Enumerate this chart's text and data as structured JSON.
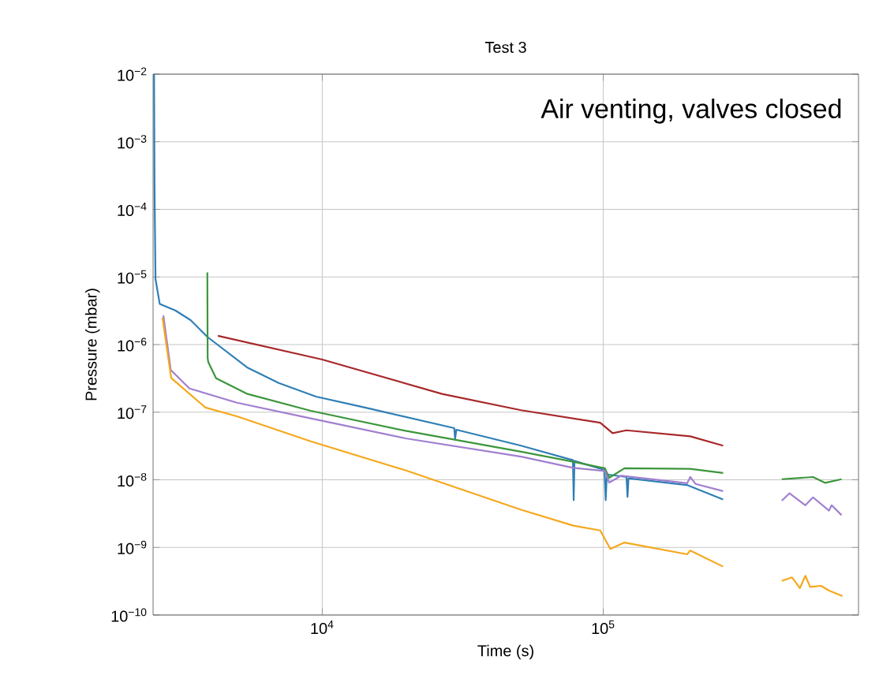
{
  "chart_data": {
    "type": "line",
    "title": "Test 3",
    "xlabel": "Time (s)",
    "ylabel": "Pressure (mbar)",
    "annotations": [
      "Air venting, valves closed"
    ],
    "log": "xy",
    "grid": true,
    "xlim": [
      2500,
      810000
    ],
    "ylim": [
      1e-10,
      0.01
    ],
    "xticks": [
      {
        "value": 10000,
        "label": "10$^{4}$"
      },
      {
        "value": 100000,
        "label": "10$^{5}$"
      }
    ],
    "yticks": [
      {
        "value": 1e-10,
        "label": "10$^{−10}$"
      },
      {
        "value": 1e-09,
        "label": "10$^{−9}$"
      },
      {
        "value": 1e-08,
        "label": "10$^{−8}$"
      },
      {
        "value": 1e-07,
        "label": "10$^{−7}$"
      },
      {
        "value": 1e-06,
        "label": "10$^{−6}$"
      },
      {
        "value": 1e-05,
        "label": "10$^{−5}$"
      },
      {
        "value": 0.0001,
        "label": "10$^{−4}$"
      },
      {
        "value": 0.001,
        "label": "10$^{−3}$"
      },
      {
        "value": 0.01,
        "label": "10$^{−2}$"
      }
    ],
    "series": [
      {
        "color": "#2f7fb5",
        "x": [
          2520,
          2530,
          2550,
          2640,
          3000,
          3400,
          3900,
          5400,
          7000,
          9500,
          14500,
          29500,
          29700,
          30000,
          51000,
          78000,
          78500,
          79000,
          101000,
          102000,
          103000,
          121000,
          122000,
          123000,
          200000,
          267000
        ],
        "values": [
          0.01,
          0.0002,
          9.3e-06,
          4e-06,
          3.2e-06,
          2.3e-06,
          1.3e-06,
          4.6e-07,
          2.7e-07,
          1.7e-07,
          1.15e-07,
          5.8e-08,
          4e-08,
          5.5e-08,
          3.2e-08,
          1.95e-08,
          5e-09,
          1.9e-08,
          1.4e-08,
          5e-09,
          1.2e-08,
          1.1e-08,
          5.6e-09,
          1.05e-08,
          8.3e-09,
          5.1e-09
        ]
      },
      {
        "color": "#a8282a",
        "x": [
          4250,
          10000,
          26700,
          51000,
          97500,
          108000,
          121000,
          204000,
          267000
        ],
        "values": [
          1.35e-06,
          6e-07,
          1.86e-07,
          1.07e-07,
          7e-08,
          4.9e-08,
          5.4e-08,
          4.4e-08,
          3.2e-08
        ]
      },
      {
        "color": "#3c963c",
        "x": [
          3900,
          3910,
          3930,
          4190,
          5420,
          9100,
          19800,
          51000,
          78200,
          101400,
          105000,
          119000,
          204000,
          267000,
          350000,
          432000,
          558000,
          617000,
          705000
        ],
        "values": [
          1.17e-05,
          6.3e-07,
          5.5e-07,
          3.17e-07,
          1.86e-07,
          1.05e-07,
          5.3e-08,
          2.6e-08,
          1.85e-08,
          1.48e-08,
          1.07e-08,
          1.48e-08,
          1.45e-08,
          1.26e-08,
          null,
          1.02e-08,
          1.1e-08,
          9e-09,
          1.02e-08
        ]
      },
      {
        "color": "#a07fd0",
        "x": [
          2720,
          2890,
          3370,
          4970,
          9100,
          19800,
          51000,
          78200,
          101400,
          105000,
          116000,
          199000,
          204000,
          213000,
          267000,
          350000,
          432000,
          460000,
          524000,
          558000,
          636000,
          650000,
          705000
        ],
        "values": [
          2.7e-06,
          4.2e-07,
          2.24e-07,
          1.38e-07,
          8.1e-08,
          4.1e-08,
          2.2e-08,
          1.5e-08,
          1.35e-08,
          9.1e-09,
          1.15e-08,
          8.9e-09,
          1.1e-08,
          8.7e-09,
          6.8e-09,
          null,
          4.9e-09,
          6.3e-09,
          4.2e-09,
          5.5e-09,
          3.5e-09,
          4.2e-09,
          3e-09
        ]
      },
      {
        "color": "#f5a81c",
        "x": [
          2700,
          2900,
          3840,
          4970,
          9100,
          19800,
          51000,
          78200,
          97500,
          106000,
          119000,
          199000,
          204000,
          267000,
          350000,
          432000,
          470000,
          501000,
          524000,
          545000,
          596000,
          636000,
          710000
        ],
        "values": [
          2.5e-06,
          3.2e-07,
          1.17e-07,
          8.7e-08,
          3.7e-08,
          1.38e-08,
          3.6e-09,
          2.1e-09,
          1.78e-09,
          9.5e-10,
          1.18e-09,
          7.9e-10,
          9e-10,
          5.2e-10,
          null,
          3.2e-10,
          3.6e-10,
          2.5e-10,
          3.8e-10,
          2.6e-10,
          2.7e-10,
          2.3e-10,
          1.9e-10
        ]
      }
    ]
  }
}
